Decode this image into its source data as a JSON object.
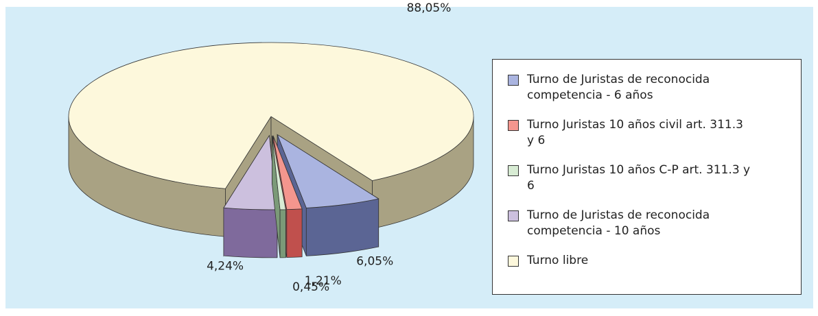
{
  "chart_data": {
    "type": "pie3d",
    "series": [
      {
        "name": "Turno de Juristas de reconocida competencia - 6 años",
        "color": "#aab4e0",
        "side_color": "#5b6594",
        "value": 6.05,
        "value_label": "6,05%"
      },
      {
        "name": "Turno Juristas 10 años civil art. 311.3 y 6",
        "color": "#f4968e",
        "side_color": "#c0504d",
        "value": 1.21,
        "value_label": "1,21%"
      },
      {
        "name": "Turno Juristas 10 años C-P art. 311.3 y 6",
        "color": "#d8ecd4",
        "side_color": "#7b9a78",
        "value": 0.45,
        "value_label": "0,45%"
      },
      {
        "name": "Turno de Juristas de reconocida competencia - 10 años",
        "color": "#ccc0de",
        "side_color": "#7f6a9c",
        "value": 4.24,
        "value_label": "4,24%"
      },
      {
        "name": "Turno libre",
        "color": "#fdf8dc",
        "side_color": "#a9a283",
        "value": 88.05,
        "value_label": "88,05%"
      }
    ],
    "legend": "right"
  }
}
